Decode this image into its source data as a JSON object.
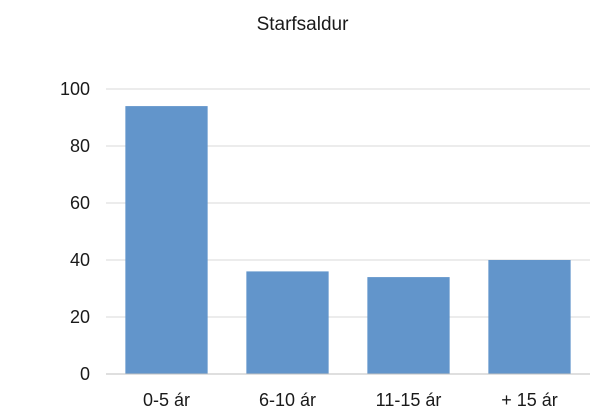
{
  "chart_data": {
    "type": "bar",
    "title": "Starfsaldur",
    "xlabel": "",
    "ylabel": "",
    "categories": [
      "0-5 ár",
      "6-10 ár",
      "11-15 ár",
      "+ 15 ár"
    ],
    "values": [
      94,
      36,
      34,
      40
    ],
    "ylim": [
      0,
      100
    ],
    "yticks": [
      0,
      20,
      40,
      60,
      80,
      100
    ],
    "grid": true,
    "legend": "none",
    "bar_color": "#6295CB",
    "grid_color": "#d9d9d9",
    "axis_color": "#bfbfbf",
    "text_color": "#1a1a1a"
  }
}
